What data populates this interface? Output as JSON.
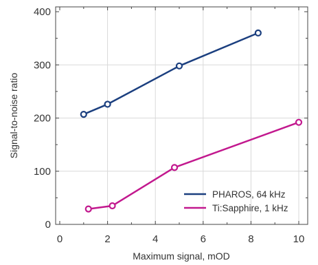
{
  "chart_data": {
    "type": "line",
    "xlabel": "Maximum signal, mOD",
    "ylabel": "Signal-to-noise ratio",
    "xlim": [
      0,
      11
    ],
    "ylim": [
      0,
      400
    ],
    "x_ticks": [
      0,
      2,
      4,
      6,
      8,
      10
    ],
    "y_ticks": [
      0,
      100,
      200,
      300,
      400
    ],
    "grid": true,
    "legend_position": "bottom-right",
    "series": [
      {
        "name": "PHAROS, 64 kHz",
        "color": "#1b3f7f",
        "points": [
          [
            1.0,
            207
          ],
          [
            2.0,
            226
          ],
          [
            5.0,
            298
          ],
          [
            8.3,
            360
          ]
        ]
      },
      {
        "name": "Ti:Sapphire, 1 kHz",
        "color": "#c2188e",
        "points": [
          [
            1.2,
            29
          ],
          [
            2.2,
            35
          ],
          [
            4.8,
            107
          ],
          [
            10.0,
            192
          ]
        ]
      }
    ]
  }
}
